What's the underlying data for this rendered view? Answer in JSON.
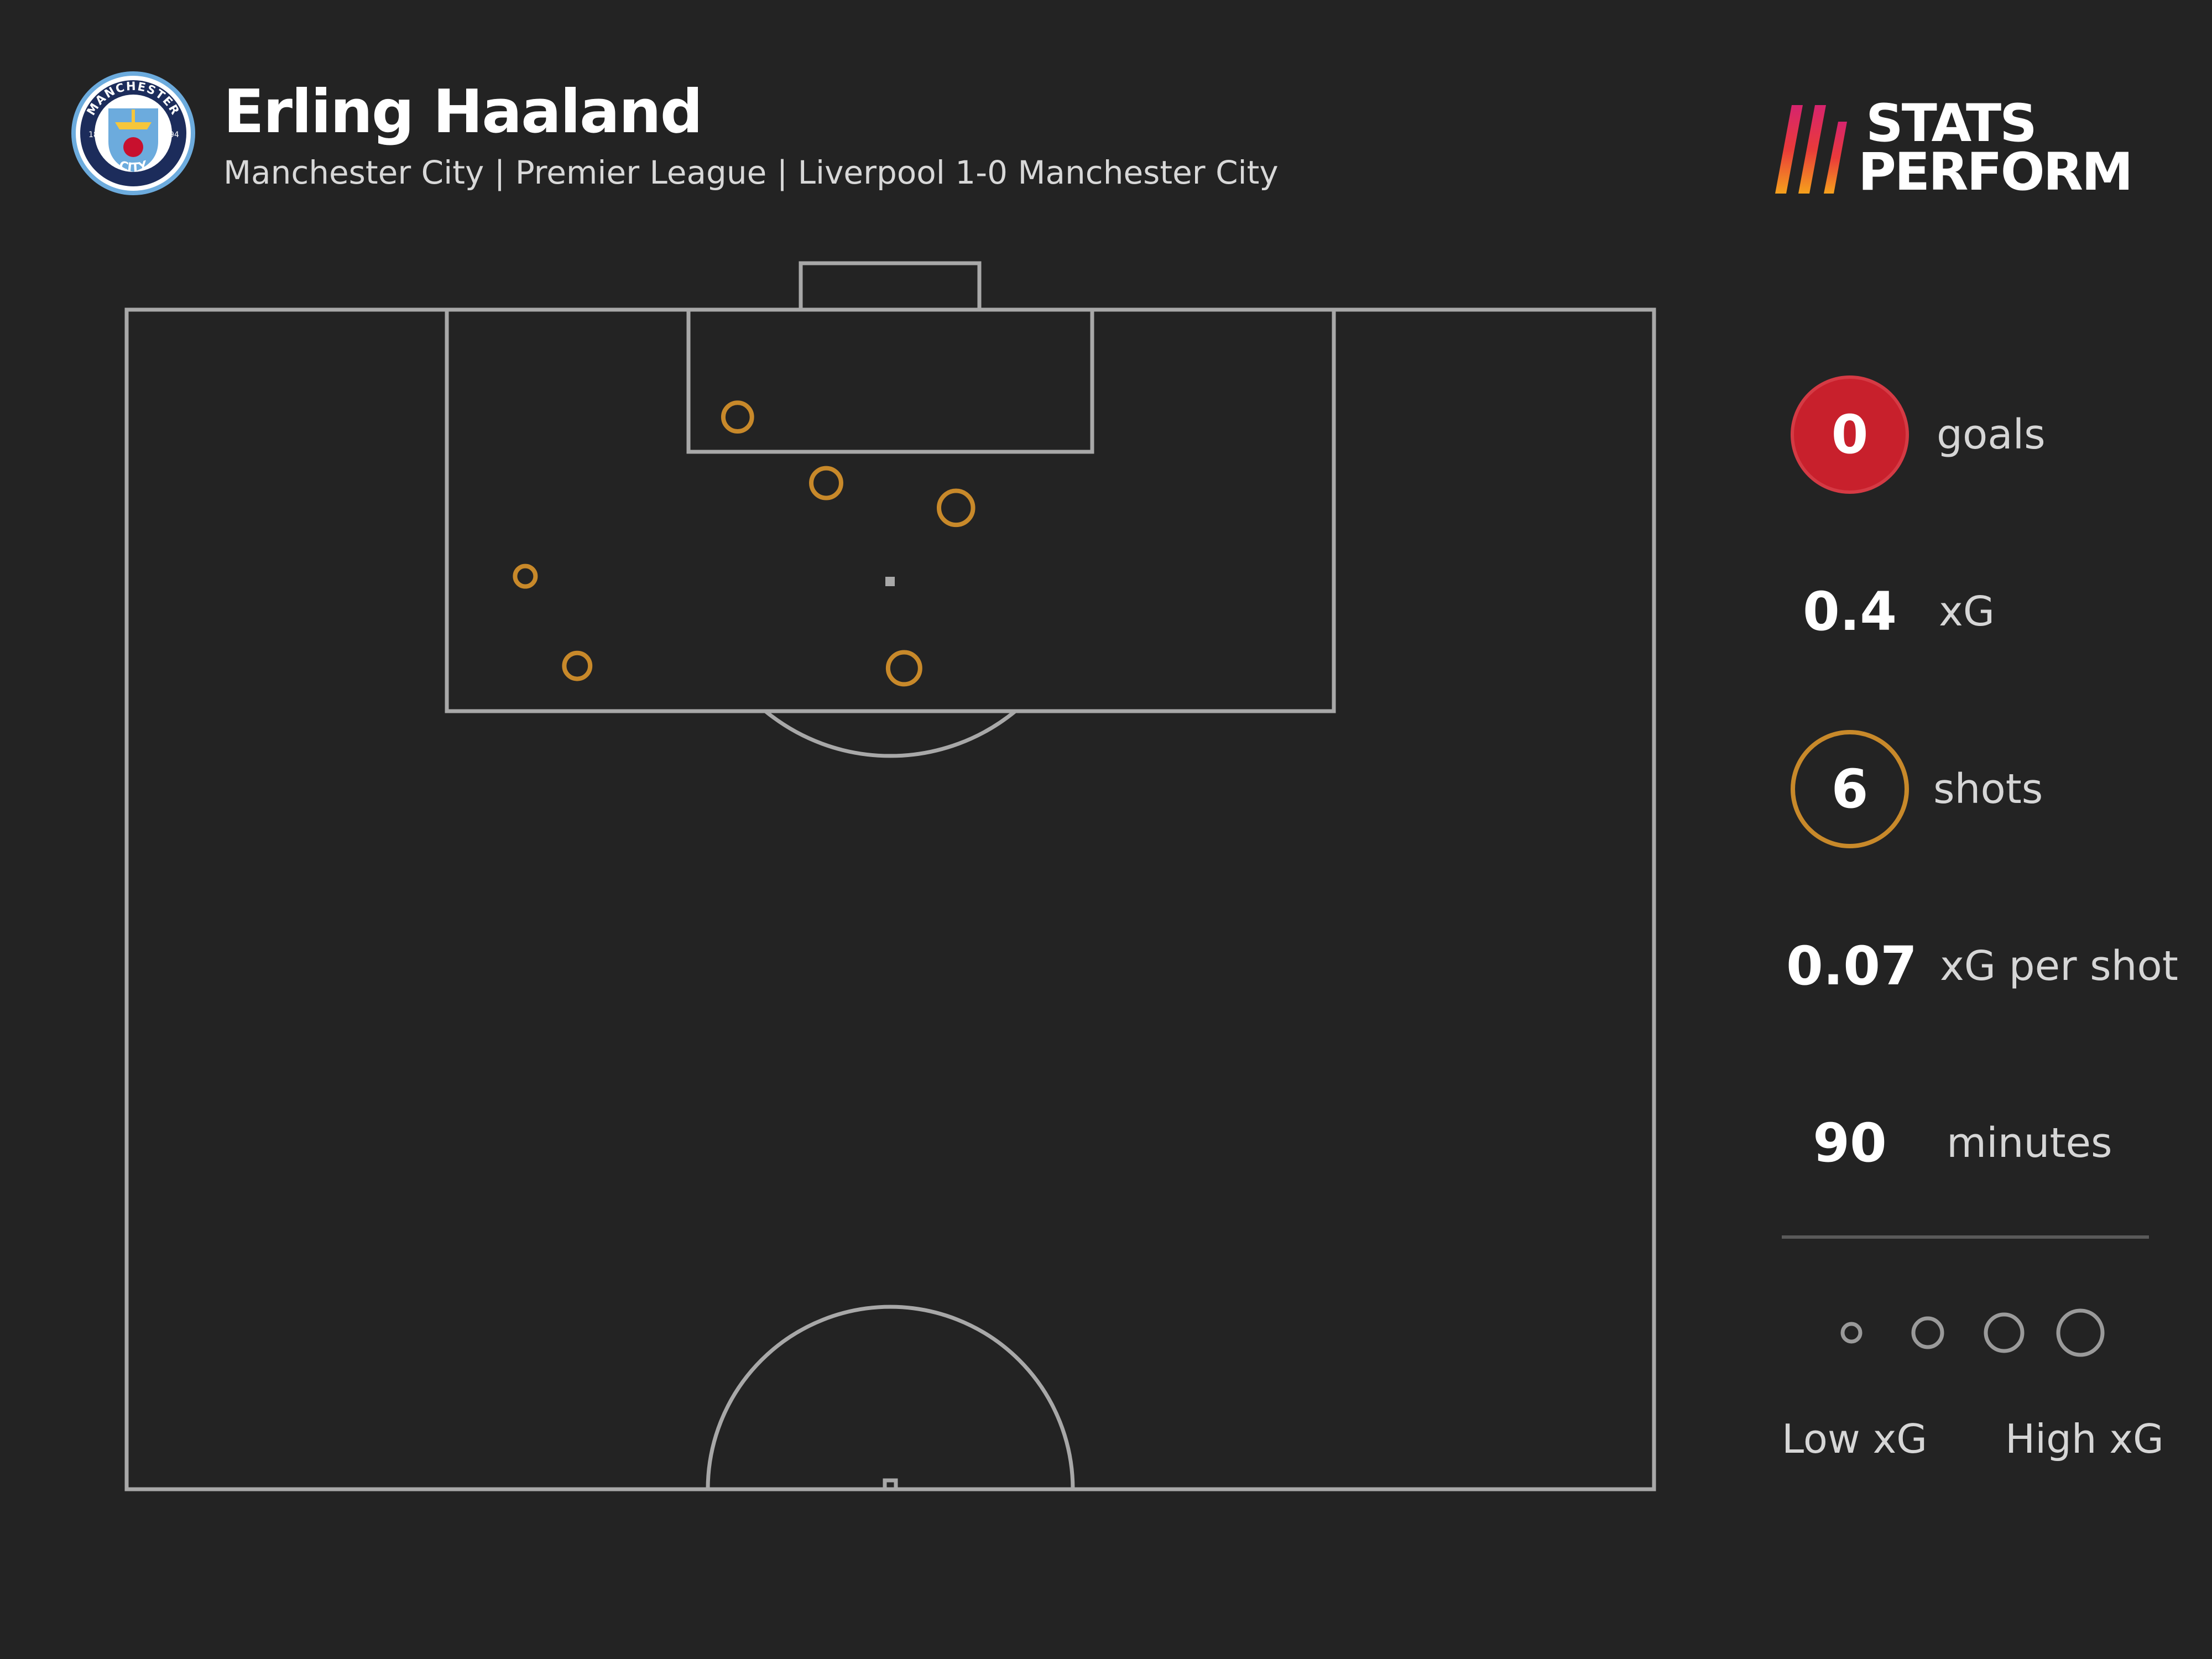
{
  "header": {
    "player_name": "Erling Haaland",
    "subtitle": "Manchester City | Premier League | Liverpool 1-0 Manchester City",
    "crest": {
      "top_text": "MANCHESTER",
      "bottom_text": "CITY",
      "year_left": "18",
      "year_right": "94"
    },
    "brand": {
      "line1": "STATS",
      "line2": "PERFORM"
    }
  },
  "stats": {
    "goals": {
      "value": "0",
      "label": "goals"
    },
    "xg": {
      "value": "0.4",
      "label": "xG"
    },
    "shots": {
      "value": "6",
      "label": "shots"
    },
    "xg_per_shot": {
      "value": "0.07",
      "label": "xG per shot"
    },
    "minutes": {
      "value": "90",
      "label": "minutes"
    }
  },
  "legend": {
    "low_label": "Low xG",
    "high_label": "High xG",
    "xg_steps": [
      0.02,
      0.08,
      0.15,
      0.25
    ]
  },
  "colors": {
    "background": "#232323",
    "pitch_lines": "#a8a8a8",
    "shot": "#c8892a",
    "goal_badge": "#c8202c"
  },
  "chart_data": {
    "type": "scatter",
    "description_units": "pitch coordinates: x = 0 (left touchline) to 100 (right touchline); y = 0 (goal line) to 100 (halfway line)",
    "x_range": [
      0,
      100
    ],
    "y_range": [
      0,
      100
    ],
    "series": [
      {
        "points": [
          {
            "x": 40.0,
            "y": 9.1,
            "xg": 0.07,
            "outcome": "miss"
          },
          {
            "x": 45.8,
            "y": 14.7,
            "xg": 0.08,
            "outcome": "miss"
          },
          {
            "x": 54.3,
            "y": 16.8,
            "xg": 0.12,
            "outcome": "miss"
          },
          {
            "x": 26.1,
            "y": 22.6,
            "xg": 0.02,
            "outcome": "miss"
          },
          {
            "x": 29.5,
            "y": 30.2,
            "xg": 0.05,
            "outcome": "miss"
          },
          {
            "x": 50.9,
            "y": 30.4,
            "xg": 0.1,
            "outcome": "miss"
          }
        ]
      }
    ]
  }
}
